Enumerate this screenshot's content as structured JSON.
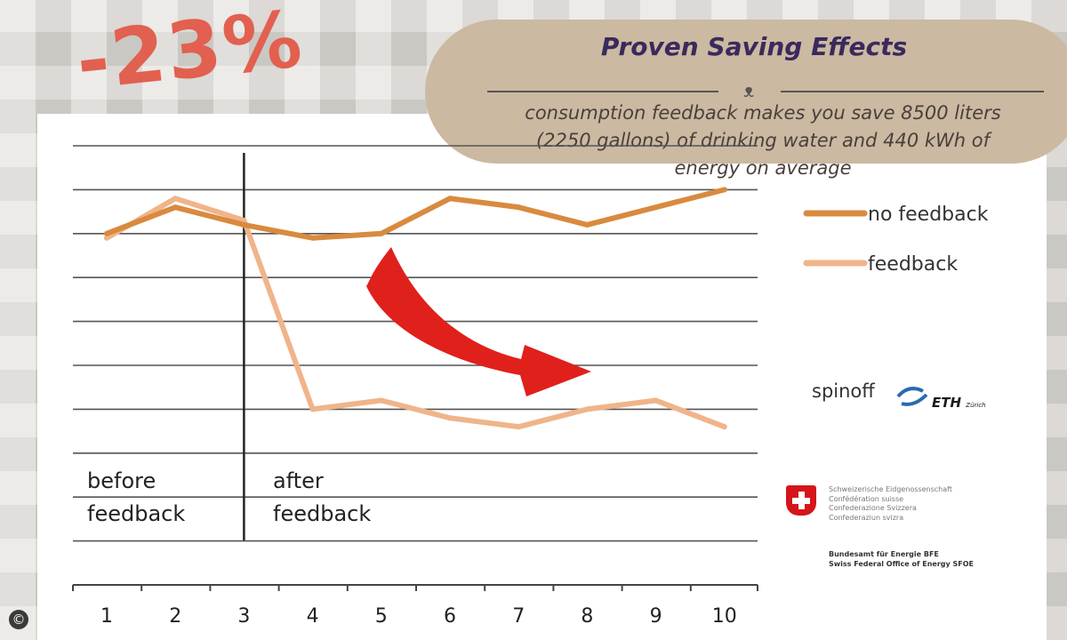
{
  "headline": "-23%",
  "info_box": {
    "title": "Proven Saving Effects",
    "icon": "polar-bear-icon",
    "lines": [
      "consumption feedback makes you save 8500 liters",
      "(2250 gallons) of drinking water and 440 kWh of",
      "energy on average"
    ]
  },
  "logos": {
    "spinoff": "spinoff",
    "eth": "ETH",
    "eth_suffix": "Zürich",
    "swiss_gov": [
      "Schweizerische Eidgenossenschaft",
      "Confédération suisse",
      "Confederazione Svizzera",
      "Confederaziun svizra"
    ],
    "office": [
      "Bundesamt für Energie BFE",
      "Swiss Federal Office of Energy SFOE"
    ]
  },
  "copyright_symbol": "©",
  "chart_data": {
    "type": "line",
    "x": [
      1,
      2,
      3,
      4,
      5,
      6,
      7,
      8,
      9,
      10
    ],
    "x_tick_labels": [
      "1",
      "2",
      "3",
      "4",
      "5",
      "6",
      "7",
      "8",
      "9",
      "10"
    ],
    "ylim": [
      0,
      10
    ],
    "grid": true,
    "legend_position": "right",
    "phase_divider_x": 3,
    "phase_labels": [
      {
        "line1": "before",
        "line2": "feedback"
      },
      {
        "line1": "after",
        "line2": "feedback"
      }
    ],
    "series": [
      {
        "name": "no feedback",
        "color": "#d98a3f",
        "values": [
          8.0,
          8.6,
          8.2,
          7.9,
          8.0,
          8.8,
          8.6,
          8.2,
          8.6,
          9.0
        ]
      },
      {
        "name": "feedback",
        "color": "#f0b48a",
        "values": [
          7.9,
          8.8,
          8.3,
          4.0,
          4.2,
          3.8,
          3.6,
          4.0,
          4.2,
          3.6
        ]
      }
    ],
    "arrow_color": "#e0201b"
  }
}
